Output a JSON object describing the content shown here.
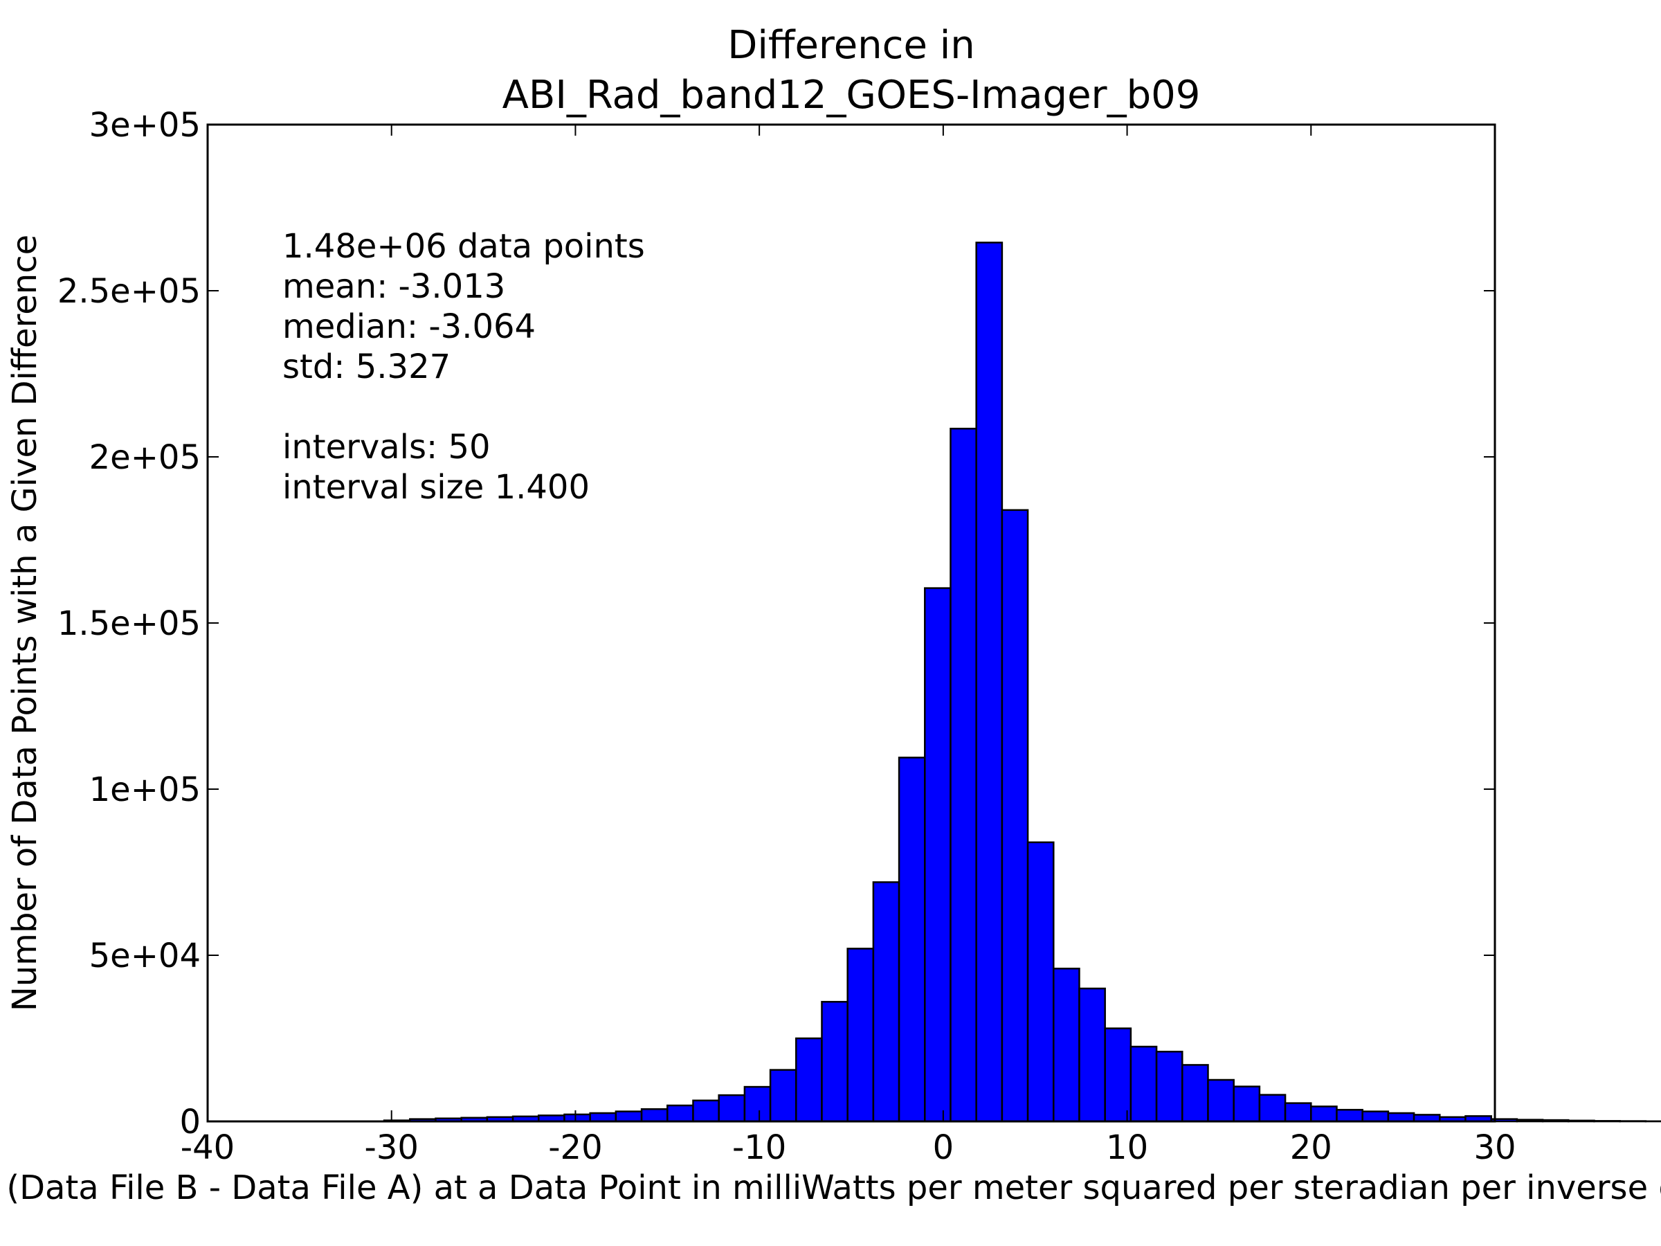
{
  "chart_data": {
    "type": "bar",
    "title_line1": "Difference in",
    "title_line2": "ABI_Rad_band12_GOES-Imager_b09",
    "xlabel": "Value of (Data File B - Data File A) at a Data Point in milliWatts per meter squared per steradian per inverse centimeter",
    "ylabel": "Number of Data Points with a Given Difference",
    "xlim": [
      -40,
      30
    ],
    "ylim": [
      0,
      300000
    ],
    "x_ticks": [
      {
        "value": -40,
        "label": "-40"
      },
      {
        "value": -30,
        "label": "-30"
      },
      {
        "value": -20,
        "label": "-20"
      },
      {
        "value": -10,
        "label": "-10"
      },
      {
        "value": 0,
        "label": "0"
      },
      {
        "value": 10,
        "label": "10"
      },
      {
        "value": 20,
        "label": "20"
      },
      {
        "value": 30,
        "label": "30"
      }
    ],
    "y_ticks": [
      {
        "value": 0,
        "label": "0"
      },
      {
        "value": 50000,
        "label": "5e+04"
      },
      {
        "value": 100000,
        "label": "1e+05"
      },
      {
        "value": 150000,
        "label": "1.5e+05"
      },
      {
        "value": 200000,
        "label": "2e+05"
      },
      {
        "value": 250000,
        "label": "2.5e+05"
      },
      {
        "value": 300000,
        "label": "3e+05"
      }
    ],
    "bar_color": "#0000ff",
    "bin_start": -30.4,
    "bin_width": 1.4,
    "values": [
      300,
      700,
      900,
      1100,
      1300,
      1500,
      1800,
      2100,
      2500,
      3000,
      3700,
      4800,
      6300,
      7900,
      10400,
      15500,
      25000,
      36000,
      52000,
      72000,
      109500,
      160500,
      208500,
      264500,
      184000,
      84000,
      46000,
      40000,
      28000,
      22500,
      21000,
      17000,
      12500,
      10500,
      8000,
      5500,
      4500,
      3500,
      3000,
      2500,
      2000,
      1300,
      1600,
      700,
      500,
      400,
      250,
      150,
      100,
      50
    ],
    "annotation": [
      "1.48e+06 data points",
      "mean: -3.013",
      "median: -3.064",
      "std: 5.327",
      "",
      "intervals: 50",
      "interval size 1.400"
    ],
    "grid": false,
    "legend": "none"
  }
}
